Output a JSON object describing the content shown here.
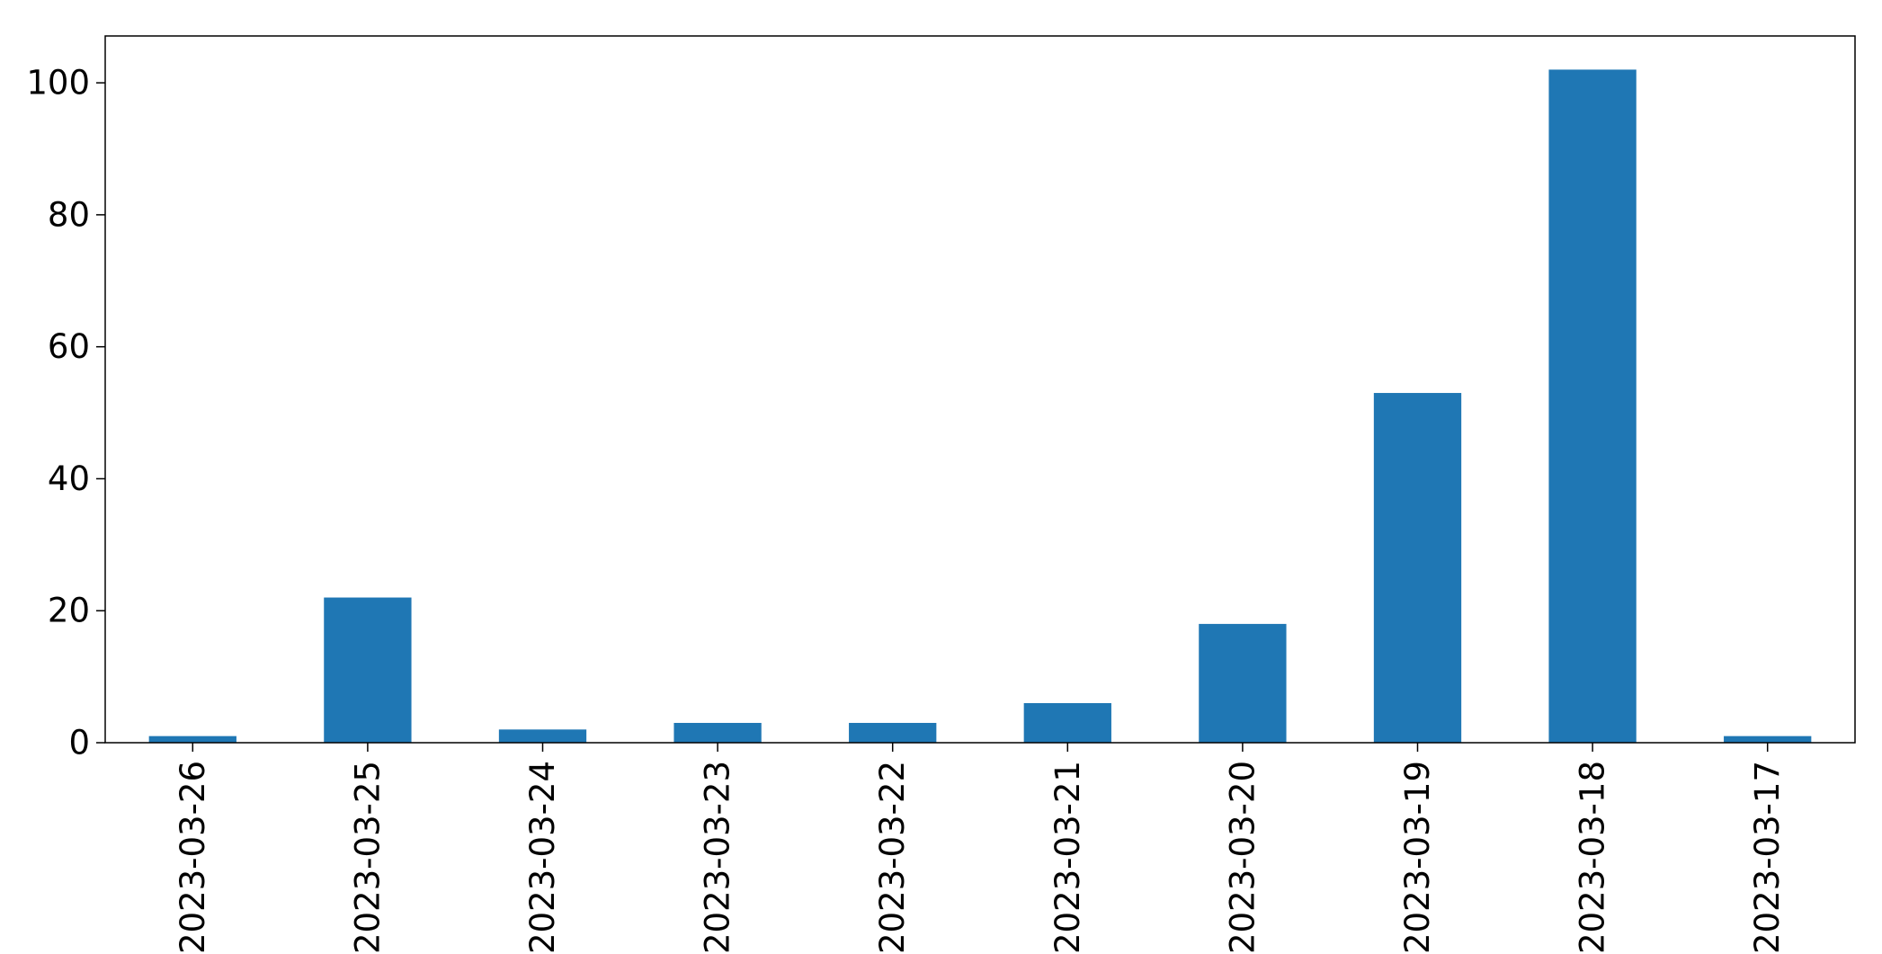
{
  "chart_data": {
    "type": "bar",
    "title": "",
    "xlabel": "",
    "ylabel": "",
    "categories": [
      "2023-03-26",
      "2023-03-25",
      "2023-03-24",
      "2023-03-23",
      "2023-03-22",
      "2023-03-21",
      "2023-03-20",
      "2023-03-19",
      "2023-03-18",
      "2023-03-17"
    ],
    "values": [
      1,
      22,
      2,
      3,
      3,
      6,
      18,
      53,
      102,
      1
    ],
    "ylim": [
      0,
      107.1
    ],
    "yticks": [
      0,
      20,
      40,
      60,
      80,
      100
    ],
    "ytick_labels": [
      "0",
      "20",
      "40",
      "60",
      "80",
      "100"
    ],
    "bar_color": "#1f77b4",
    "grid": false,
    "legend": "none"
  }
}
